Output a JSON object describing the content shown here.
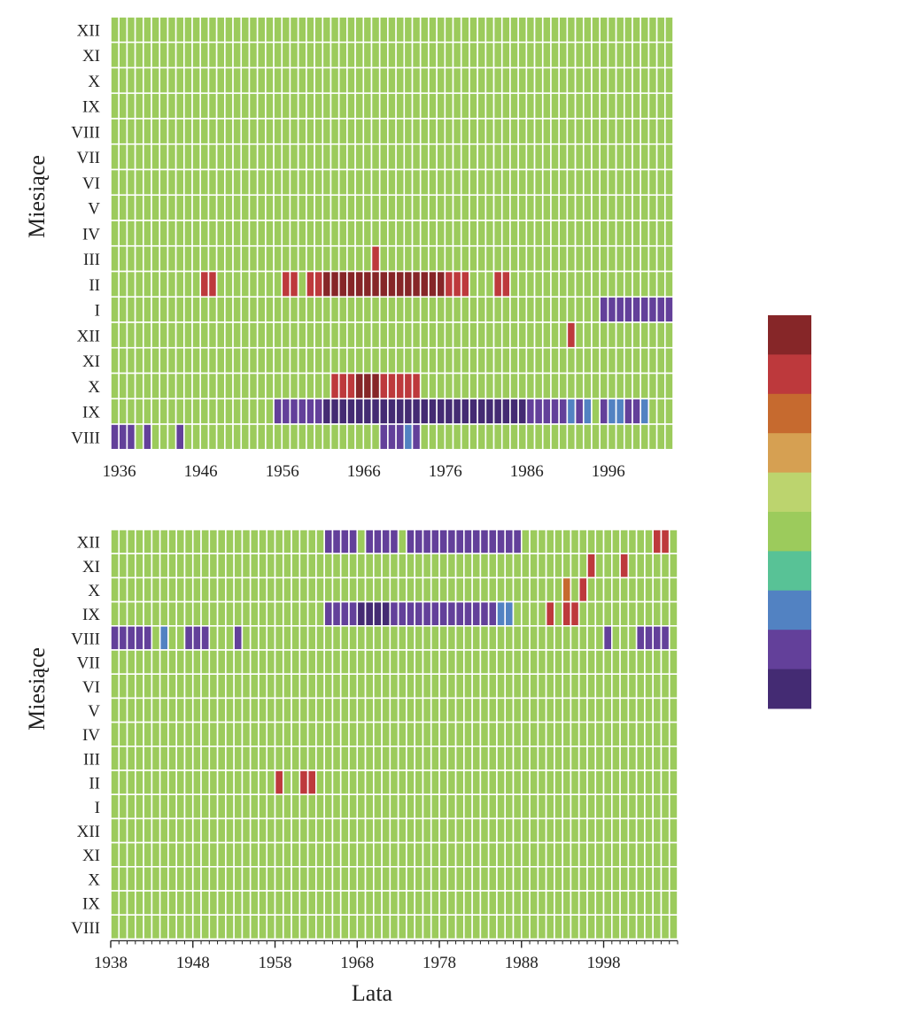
{
  "chart_data": [
    {
      "type": "heatmap",
      "title": "",
      "xlabel": "",
      "ylabel": "Miesiące",
      "x_start_year": 1936,
      "x_end_year": 2004,
      "xtick_labels": [
        "1936",
        "1946",
        "1956",
        "1966",
        "1976",
        "1986",
        "1996"
      ],
      "rows": [
        "XII",
        "XI",
        "X",
        "IX",
        "VIII",
        "VII",
        "VI",
        "V",
        "IV",
        "III",
        "II",
        "I",
        "XII",
        "XI",
        "X",
        "IX",
        "VIII"
      ],
      "default_level": 5,
      "cells": [
        {
          "row": "III",
          "from": 1968,
          "to": 1968,
          "level": 1
        },
        {
          "row": "II",
          "from": 1947,
          "to": 1948,
          "level": 1
        },
        {
          "row": "II",
          "from": 1957,
          "to": 1958,
          "level": 1
        },
        {
          "row": "II",
          "from": 1960,
          "to": 1961,
          "level": 1
        },
        {
          "row": "II",
          "from": 1962,
          "to": 1976,
          "level": 0
        },
        {
          "row": "II",
          "from": 1977,
          "to": 1979,
          "level": 1
        },
        {
          "row": "II",
          "from": 1983,
          "to": 1984,
          "level": 1
        },
        {
          "row": "I",
          "from": 1996,
          "to": 2004,
          "level": 8
        },
        {
          "row": "XII",
          "from": 1992,
          "to": 1992,
          "level": 1
        },
        {
          "row": "X",
          "from": 1963,
          "to": 1965,
          "level": 1
        },
        {
          "row": "X",
          "from": 1966,
          "to": 1968,
          "level": 0
        },
        {
          "row": "X",
          "from": 1969,
          "to": 1973,
          "level": 1
        },
        {
          "row": "IX",
          "from": 1956,
          "to": 1961,
          "level": 8
        },
        {
          "row": "IX",
          "from": 1962,
          "to": 1986,
          "level": 9
        },
        {
          "row": "IX",
          "from": 1987,
          "to": 1991,
          "level": 8
        },
        {
          "row": "IX",
          "from": 1992,
          "to": 1992,
          "level": 7
        },
        {
          "row": "IX",
          "from": 1993,
          "to": 1993,
          "level": 8
        },
        {
          "row": "IX",
          "from": 1994,
          "to": 1994,
          "level": 7
        },
        {
          "row": "IX",
          "from": 1996,
          "to": 1996,
          "level": 8
        },
        {
          "row": "IX",
          "from": 1997,
          "to": 1998,
          "level": 7
        },
        {
          "row": "IX",
          "from": 1999,
          "to": 2000,
          "level": 8
        },
        {
          "row": "IX",
          "from": 2001,
          "to": 2001,
          "level": 7
        },
        {
          "row": "VIII",
          "from": 1936,
          "to": 1938,
          "level": 8
        },
        {
          "row": "VIII",
          "from": 1940,
          "to": 1940,
          "level": 8
        },
        {
          "row": "VIII",
          "from": 1944,
          "to": 1944,
          "level": 8
        },
        {
          "row": "VIII",
          "from": 1969,
          "to": 1971,
          "level": 8
        },
        {
          "row": "VIII",
          "from": 1972,
          "to": 1972,
          "level": 7
        },
        {
          "row": "VIII",
          "from": 1973,
          "to": 1973,
          "level": 8
        }
      ]
    },
    {
      "type": "heatmap",
      "title": "",
      "xlabel": "Lata",
      "ylabel": "Miesiące",
      "x_start_year": 1938,
      "x_end_year": 2006,
      "xtick_labels": [
        "1938",
        "1948",
        "1958",
        "1968",
        "1978",
        "1988",
        "1998"
      ],
      "rows": [
        "XII",
        "XI",
        "X",
        "IX",
        "VIII",
        "VII",
        "VI",
        "V",
        "IV",
        "III",
        "II",
        "I",
        "XII",
        "XI",
        "X",
        "IX",
        "VIII"
      ],
      "default_level": 5,
      "cells": [
        {
          "row": "XII",
          "from": 1964,
          "to": 1967,
          "level": 8
        },
        {
          "row": "XII",
          "from": 1969,
          "to": 1972,
          "level": 8
        },
        {
          "row": "XII",
          "from": 1974,
          "to": 1987,
          "level": 8
        },
        {
          "row": "XI",
          "from": 1996,
          "to": 1996,
          "level": 1
        },
        {
          "row": "XI",
          "from": 2000,
          "to": 2000,
          "level": 1
        },
        {
          "row": "X",
          "from": 1993,
          "to": 1993,
          "level": 2
        },
        {
          "row": "X",
          "from": 1995,
          "to": 1995,
          "level": 1
        },
        {
          "row": "IX",
          "from": 1985,
          "to": 1985,
          "level": 1
        },
        {
          "row": "IX",
          "from": 1991,
          "to": 1991,
          "level": 1
        },
        {
          "row": "IX",
          "from": 1993,
          "to": 1994,
          "level": 1
        },
        {
          "row": "II",
          "from": 1958,
          "to": 1958,
          "level": 1
        },
        {
          "row": "II",
          "from": 1961,
          "to": 1962,
          "level": 1
        },
        {
          "row": "XII",
          "from": 2004,
          "to": 2005,
          "level": 1
        },
        {
          "row": "IX",
          "from": 1964,
          "to": 1967,
          "level": 8
        },
        {
          "row": "IX",
          "from": 1968,
          "to": 1971,
          "level": 9
        },
        {
          "row": "IX",
          "from": 1972,
          "to": 1984,
          "level": 8
        },
        {
          "row": "IX",
          "from": 1985,
          "to": 1986,
          "level": 7
        },
        {
          "row": "VIII",
          "from": 1938,
          "to": 1942,
          "level": 8
        },
        {
          "row": "VIII",
          "from": 1944,
          "to": 1944,
          "level": 7
        },
        {
          "row": "VIII",
          "from": 1947,
          "to": 1949,
          "level": 8
        },
        {
          "row": "VIII",
          "from": 1953,
          "to": 1953,
          "level": 8
        },
        {
          "row": "VIII",
          "from": 1998,
          "to": 1998,
          "level": 8
        },
        {
          "row": "VIII",
          "from": 2002,
          "to": 2005,
          "level": 8
        }
      ]
    }
  ],
  "colors": {
    "scale": [
      "#862628",
      "#bd393c",
      "#c66a2f",
      "#d6a052",
      "#bcd46e",
      "#9ccb5c",
      "#58c296",
      "#5282c2",
      "#63409a",
      "#442b73"
    ],
    "grid": "#ffffff",
    "text": "#222222"
  }
}
